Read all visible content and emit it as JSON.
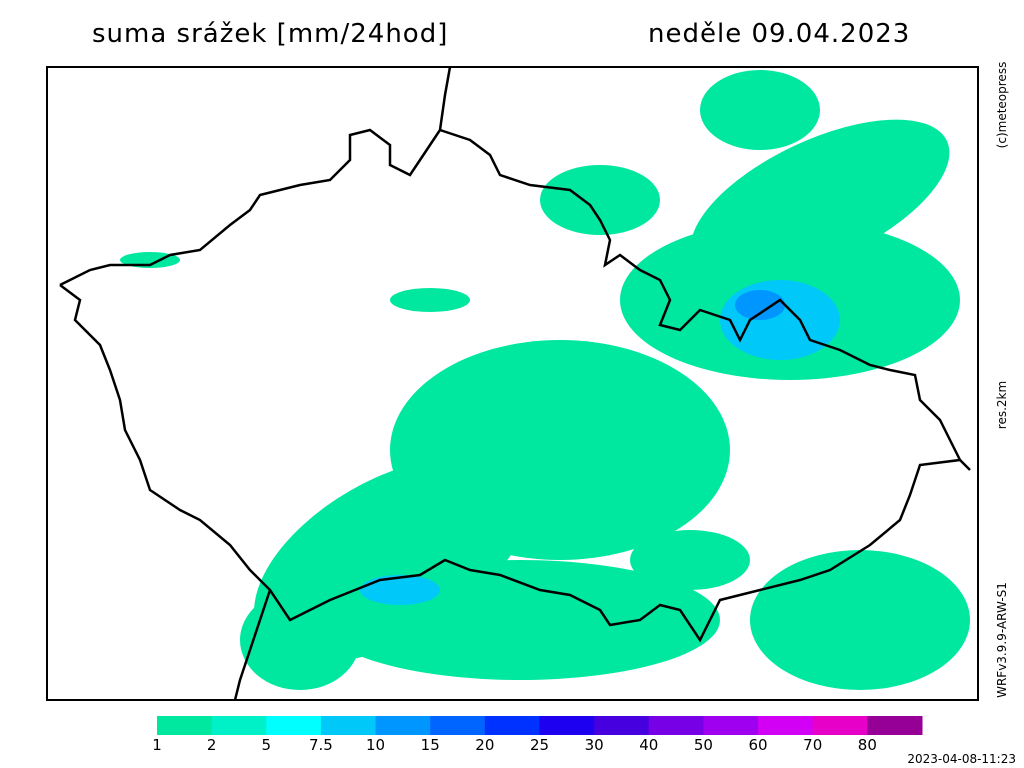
{
  "header": {
    "title": "suma srážek [mm/24hod]",
    "date": "neděle 09.04.2023"
  },
  "side_labels": {
    "copyright": "(c)meteopress",
    "resolution": "res.2km",
    "model": "WRFv3.9.9-ARW-S1"
  },
  "legend": [
    {
      "label": "1",
      "color": "#00e8a0"
    },
    {
      "label": "2",
      "color": "#00f0c8"
    },
    {
      "label": "5",
      "color": "#00ffff"
    },
    {
      "label": "7.5",
      "color": "#00c8f8"
    },
    {
      "label": "10",
      "color": "#0096ff"
    },
    {
      "label": "15",
      "color": "#0064ff"
    },
    {
      "label": "20",
      "color": "#0032ff"
    },
    {
      "label": "25",
      "color": "#1e00f0"
    },
    {
      "label": "30",
      "color": "#4600e0"
    },
    {
      "label": "40",
      "color": "#7800e6"
    },
    {
      "label": "50",
      "color": "#a000f0"
    },
    {
      "label": "60",
      "color": "#d200f5"
    },
    {
      "label": "70",
      "color": "#e600c8"
    },
    {
      "label": "80",
      "color": "#960096"
    }
  ],
  "timestamp": "2023-04-08-11:23"
}
